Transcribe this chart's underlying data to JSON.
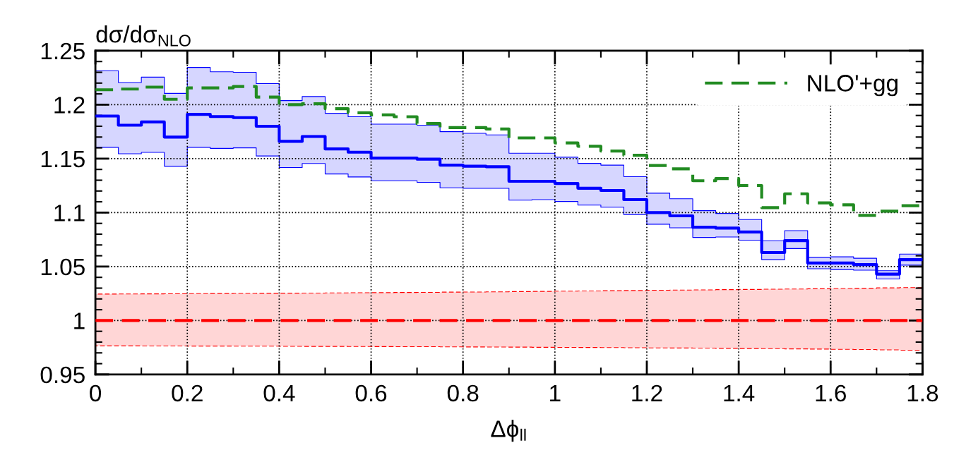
{
  "chart_data": {
    "type": "step",
    "ylabel": "dσ/dσ$_{NLO}$",
    "xlabel": "Δϕ$_{ll}$",
    "x": [
      0,
      0.05,
      0.1,
      0.15,
      0.2,
      0.25,
      0.3,
      0.35,
      0.4,
      0.45,
      0.5,
      0.55,
      0.6,
      0.65,
      0.7,
      0.75,
      0.8,
      0.85,
      0.9,
      0.95,
      1,
      1.05,
      1.1,
      1.15,
      1.2,
      1.25,
      1.3,
      1.35,
      1.4,
      1.45,
      1.5,
      1.55,
      1.6,
      1.65,
      1.7,
      1.75,
      1.8
    ],
    "series": [
      {
        "color": "#ff0000",
        "line_style": "dashed",
        "values": [
          1,
          1,
          1,
          1,
          1,
          1,
          1,
          1,
          1,
          1,
          1,
          1,
          1,
          1,
          1,
          1,
          1,
          1,
          1,
          1,
          1,
          1,
          1,
          1,
          1,
          1,
          1,
          1,
          1,
          1,
          1,
          1,
          1,
          1,
          1,
          1,
          1
        ],
        "lower": [
          0.9765,
          0.9765,
          0.9764,
          0.9764,
          0.9763,
          0.9763,
          0.9762,
          0.9762,
          0.9761,
          0.976,
          0.976,
          0.9759,
          0.9758,
          0.9757,
          0.9757,
          0.9756,
          0.9755,
          0.9754,
          0.9753,
          0.9752,
          0.9751,
          0.975,
          0.9749,
          0.9748,
          0.9746,
          0.9745,
          0.9744,
          0.9742,
          0.974,
          0.9739,
          0.9737,
          0.9735,
          0.9733,
          0.9731,
          0.9728,
          0.9725,
          0.9725
        ],
        "upper": [
          1.0245,
          1.0246,
          1.0247,
          1.0248,
          1.0249,
          1.025,
          1.0251,
          1.0252,
          1.0253,
          1.0254,
          1.0256,
          1.0257,
          1.0258,
          1.026,
          1.0261,
          1.0263,
          1.0264,
          1.0266,
          1.0268,
          1.027,
          1.0272,
          1.0274,
          1.0276,
          1.0278,
          1.028,
          1.0282,
          1.0284,
          1.0286,
          1.0288,
          1.029,
          1.0292,
          1.0294,
          1.0297,
          1.0299,
          1.0302,
          1.0305,
          1.0305
        ]
      },
      {
        "color": "#0000ff",
        "line_style": "solid",
        "values": [
          1.1895,
          1.181,
          1.184,
          1.17,
          1.191,
          1.189,
          1.188,
          1.18,
          1.166,
          1.1705,
          1.159,
          1.156,
          1.1505,
          1.1505,
          1.1495,
          1.144,
          1.143,
          1.1425,
          1.129,
          1.129,
          1.127,
          1.1226,
          1.1205,
          1.112,
          1.1,
          1.097,
          1.0864,
          1.0856,
          1.082,
          1.063,
          1.074,
          1.0533,
          1.0533,
          1.0518,
          1.043,
          1.0564,
          1.0564
        ],
        "lower": [
          1.1605,
          1.1545,
          1.1558,
          1.143,
          1.1605,
          1.1595,
          1.16,
          1.1525,
          1.1418,
          1.1455,
          1.1358,
          1.133,
          1.1295,
          1.1295,
          1.128,
          1.123,
          1.1225,
          1.1225,
          1.1115,
          1.112,
          1.1103,
          1.107,
          1.105,
          1.098,
          1.0892,
          1.0859,
          1.077,
          1.0774,
          1.0744,
          1.0564,
          1.0667,
          1.048,
          1.0472,
          1.0467,
          1.0385,
          1.0513,
          1.0513
        ],
        "upper": [
          1.2315,
          1.2205,
          1.2255,
          1.2105,
          1.2345,
          1.2305,
          1.23,
          1.2195,
          1.2038,
          1.2075,
          1.192,
          1.1888,
          1.182,
          1.182,
          1.181,
          1.175,
          1.1735,
          1.172,
          1.155,
          1.155,
          1.1513,
          1.1456,
          1.144,
          1.1333,
          1.118,
          1.1128,
          1.1018,
          1.0992,
          1.0936,
          1.0738,
          1.0833,
          1.0585,
          1.059,
          1.0577,
          1.0462,
          1.0615,
          1.0615
        ]
      },
      {
        "name": "NLO'+gg",
        "color": "#228b22",
        "line_style": "dashed",
        "values": [
          1.2138,
          1.2145,
          1.2163,
          1.205,
          1.2155,
          1.2155,
          1.2168,
          1.207,
          1.2,
          1.2008,
          1.1963,
          1.1925,
          1.1905,
          1.1888,
          1.1825,
          1.1788,
          1.1788,
          1.1775,
          1.1692,
          1.1692,
          1.1646,
          1.1615,
          1.157,
          1.1531,
          1.1436,
          1.1405,
          1.1295,
          1.1315,
          1.1251,
          1.1046,
          1.1174,
          1.109,
          1.1072,
          1.0974,
          1.1013,
          1.1064,
          1.1064
        ]
      }
    ],
    "xlim": [
      0,
      1.8
    ],
    "xticks": [
      0,
      0.2,
      0.4,
      0.6,
      0.8,
      1,
      1.2,
      1.4,
      1.6,
      1.8
    ],
    "ylim": [
      0.95,
      1.25
    ],
    "yticks": [
      0.95,
      1,
      1.05,
      1.1,
      1.15,
      1.2,
      1.25
    ],
    "grid": true,
    "legend": "top right"
  }
}
